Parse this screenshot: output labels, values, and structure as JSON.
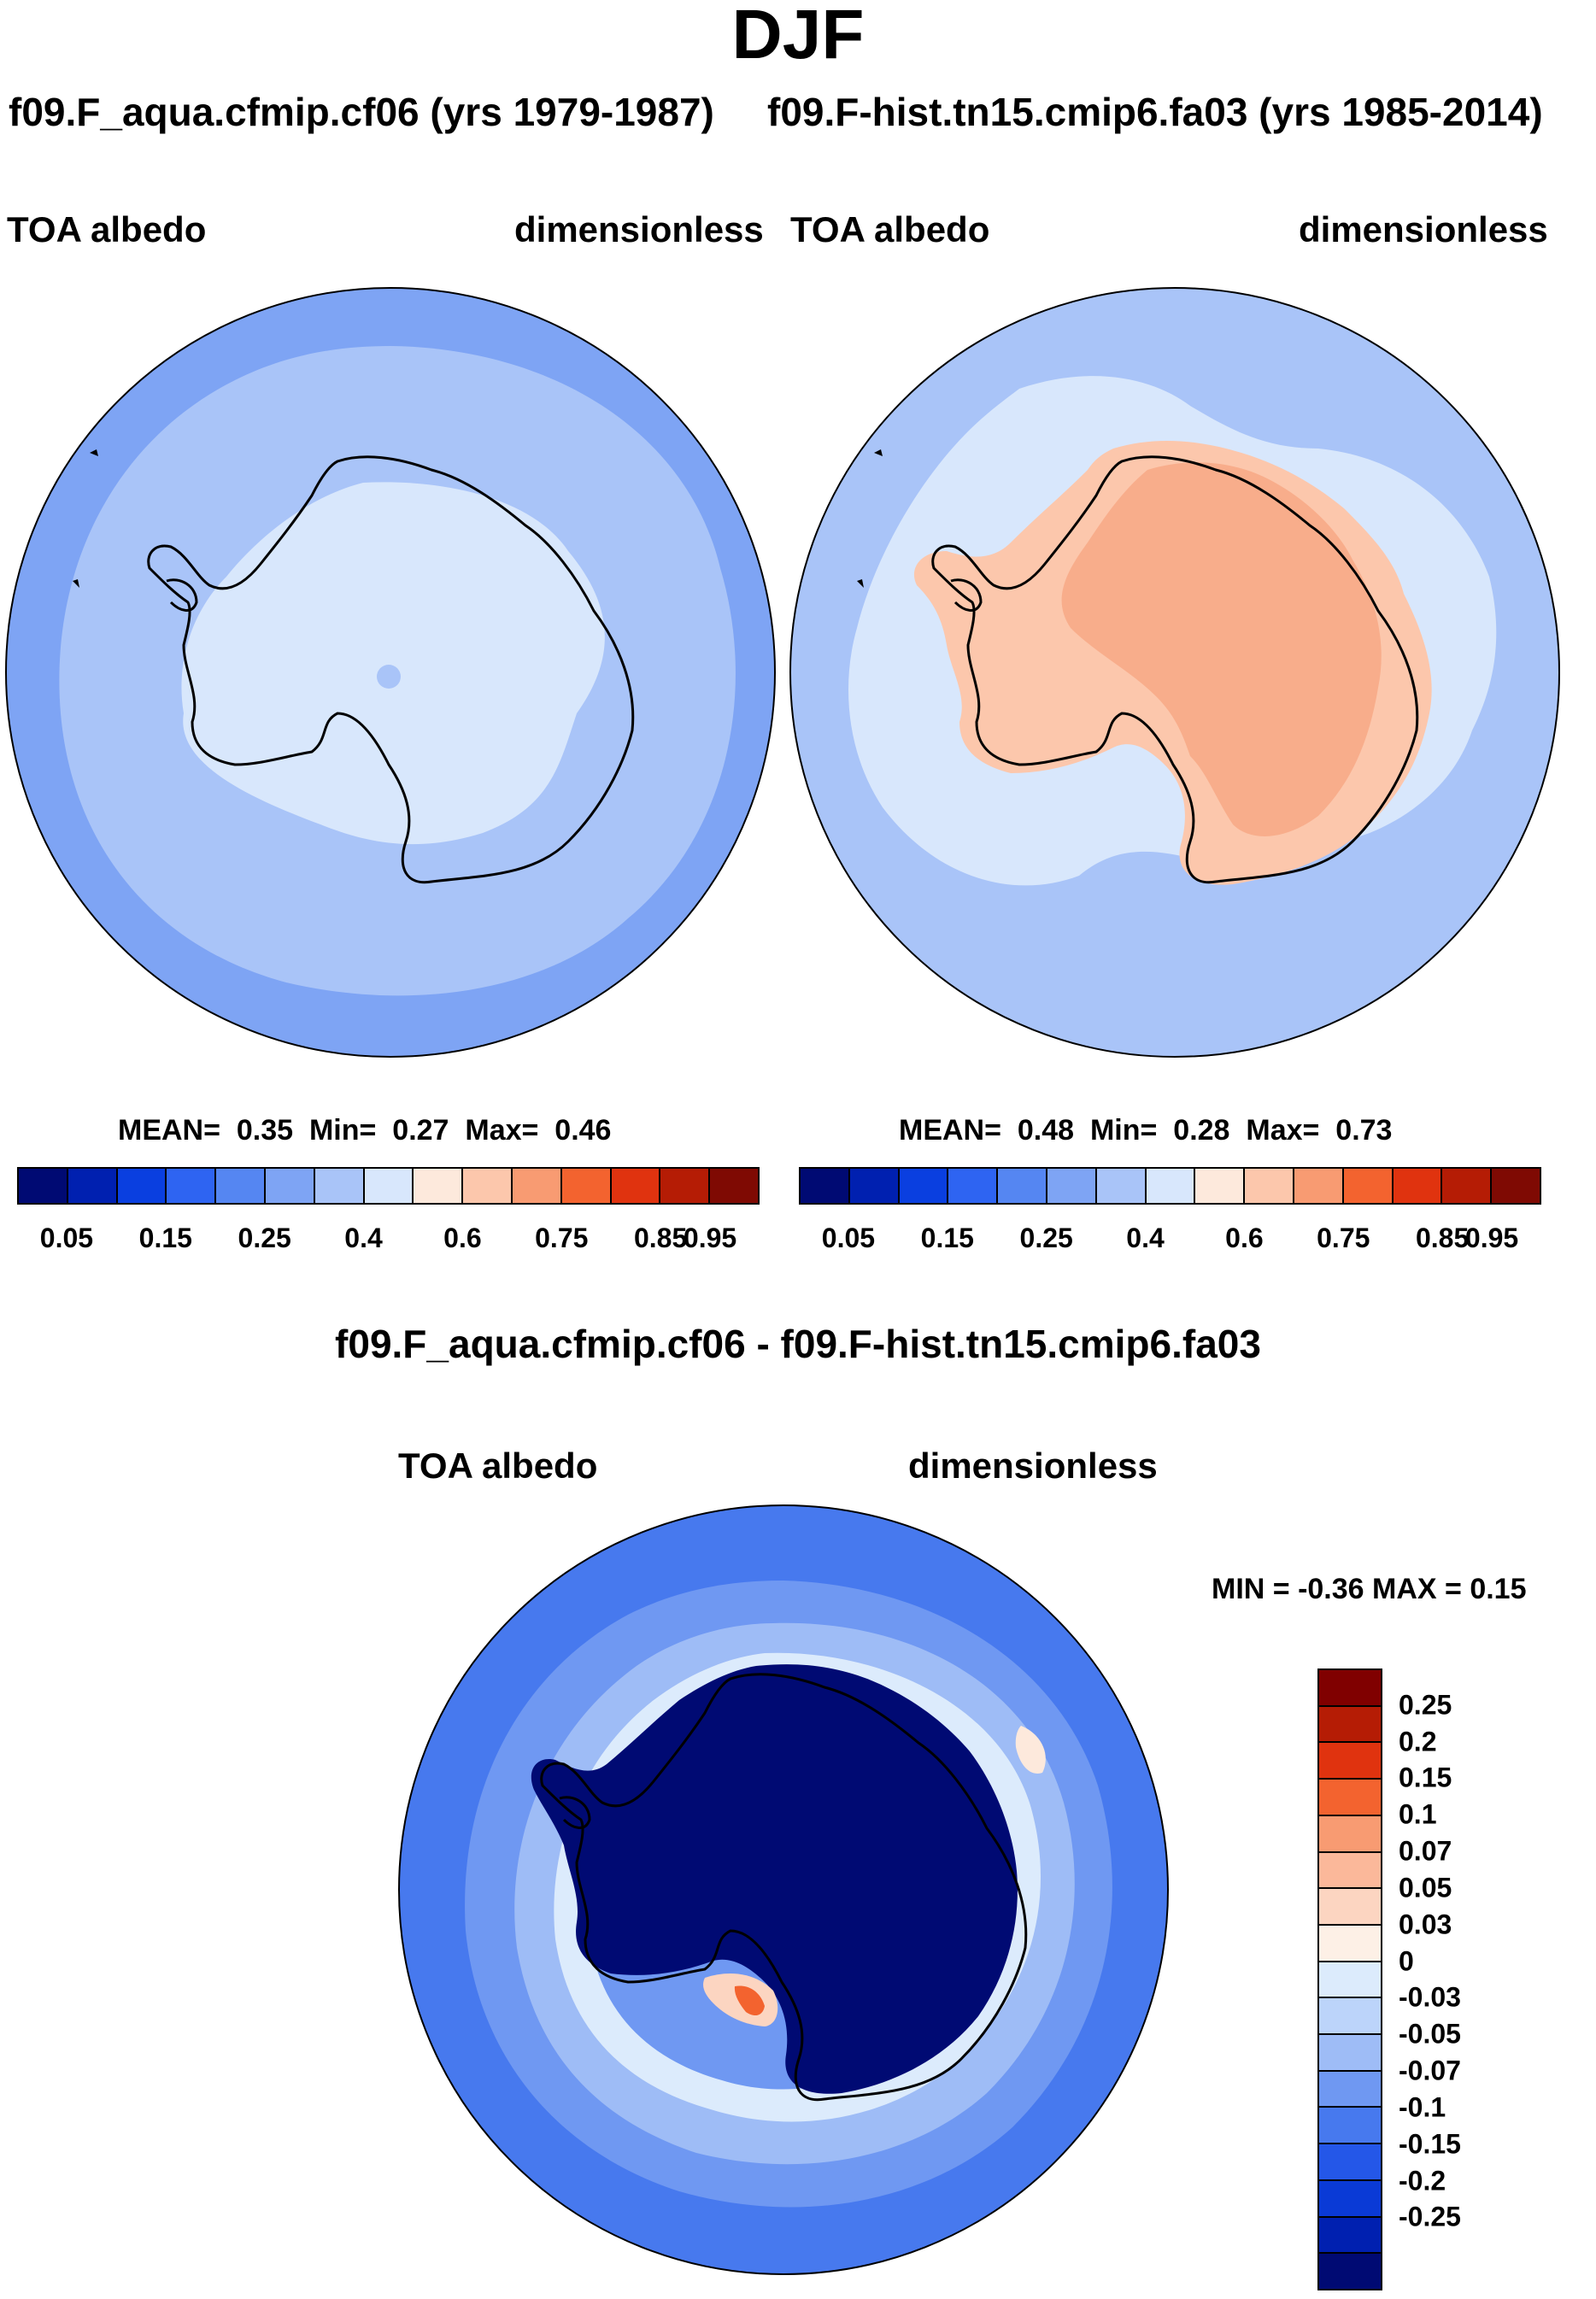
{
  "season": "DJF",
  "panels": [
    {
      "case_title": "f09.F_aqua.cfmip.cf06 (yrs 1979-1987)",
      "field": "TOA albedo",
      "units": "dimensionless",
      "stats": {
        "mean_label": "MEAN=",
        "mean": "0.35",
        "min_label": "Min=",
        "min": "0.27",
        "max_label": "Max=",
        "max": "0.46"
      }
    },
    {
      "case_title": "f09.F-hist.tn15.cmip6.fa03 (yrs 1985-2014)",
      "field": "TOA albedo",
      "units": "dimensionless",
      "stats": {
        "mean_label": "MEAN=",
        "mean": "0.48",
        "min_label": "Min=",
        "min": "0.28",
        "max_label": "Max=",
        "max": "0.73"
      }
    }
  ],
  "abs_colorbar": {
    "colors": [
      "#000a73",
      "#0020b0",
      "#0a3fe0",
      "#2e64f2",
      "#5586f2",
      "#7ea4f4",
      "#a9c4f8",
      "#d8e7fc",
      "#fde9dc",
      "#fcc7ac",
      "#f89b72",
      "#f3632f",
      "#e0330f",
      "#b51c05",
      "#7f0a03"
    ],
    "tick_labels": [
      "0.05",
      "0.15",
      "0.25",
      "0.4",
      "0.6",
      "0.75",
      "0.85",
      "0.95"
    ]
  },
  "diff": {
    "title": "f09.F_aqua.cfmip.cf06 - f09.F-hist.tn15.cmip6.fa03",
    "field": "TOA albedo",
    "units": "dimensionless",
    "minmax_label": "MIN =  -0.36 MAX =   0.15",
    "colorbar": {
      "colors_top_to_bottom": [
        "#800000",
        "#b51c05",
        "#e0330f",
        "#f3632f",
        "#f89b72",
        "#fbb89a",
        "#fcd5c1",
        "#fdf0e6",
        "#dcebfc",
        "#bcd4fa",
        "#9ebcf6",
        "#6f98f2",
        "#4779ee",
        "#2457e8",
        "#0a3ad6",
        "#0020b0",
        "#000a73"
      ],
      "tick_labels": [
        "0.25",
        "0.2",
        "0.15",
        "0.1",
        "0.07",
        "0.05",
        "0.03",
        "0",
        "-0.03",
        "-0.05",
        "-0.07",
        "-0.1",
        "-0.15",
        "-0.2",
        "-0.25"
      ]
    }
  }
}
